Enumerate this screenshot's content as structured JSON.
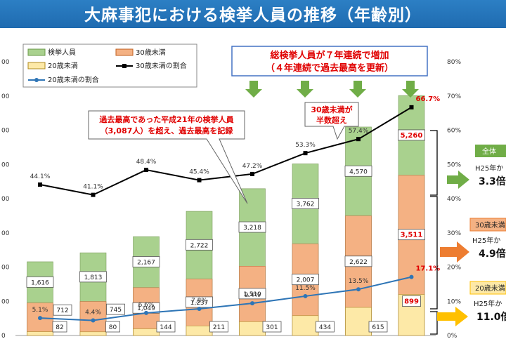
{
  "page": {
    "title": "大麻事犯における検挙人員の推移（年齢別）"
  },
  "chart_data": {
    "type": "bar",
    "stacked": true,
    "years_count": 8,
    "series": [
      {
        "name": "20歳未満",
        "values": [
          82,
          80,
          144,
          211,
          301,
          434,
          615,
          899
        ],
        "color": "#fde9a7"
      },
      {
        "name": "30歳未満",
        "values": [
          712,
          745,
          1049,
          1237,
          1519,
          2007,
          2622,
          3511
        ],
        "color": "#f4b183"
      },
      {
        "name": "検挙人員",
        "values": [
          1616,
          1813,
          2167,
          2722,
          3218,
          3762,
          4570,
          5260
        ],
        "color": "#a9d18e"
      }
    ],
    "lines": [
      {
        "name": "30歳未満の割合",
        "values": [
          44.1,
          41.1,
          48.4,
          45.4,
          47.2,
          53.3,
          57.4,
          66.7
        ],
        "labels": [
          "44.1%",
          "41.1%",
          "48.4%",
          "45.4%",
          "47.2%",
          "53.3%",
          "57.4%",
          "66.7%"
        ],
        "color": "#000000"
      },
      {
        "name": "20歳未満の割合",
        "values": [
          5.1,
          4.4,
          6.6,
          7.8,
          9.4,
          11.5,
          13.5,
          17.1
        ],
        "labels": [
          "5.1%",
          "4.4%",
          "6.6%",
          "7.8%",
          "9.4%",
          "11.5%",
          "13.5%",
          "17.1%"
        ],
        "color": "#2e75b6"
      }
    ],
    "y_left_ticks": [
      "0",
      "00",
      "00",
      "00",
      "00",
      "00",
      "00",
      "00",
      "00"
    ],
    "y_left_range": [
      0,
      6000
    ],
    "y_right_ticks": [
      "0%",
      "10%",
      "20%",
      "30%",
      "40%",
      "50%",
      "60%",
      "70%",
      "80%"
    ],
    "y_right_range": [
      0,
      80
    ],
    "legend": [
      "検挙人員",
      "30歳未満",
      "20歳未満",
      "30歳未満の割合",
      "20歳未満の割合"
    ]
  },
  "annotations": {
    "banner": [
      "総検挙人員が７年連続で増加",
      "（４年連続で過去最高を更新）"
    ],
    "record": [
      "過去最高であった平成21年の検挙人員",
      "（3,087人）を超え、過去最高を記録"
    ],
    "majority": [
      "30歳未満が",
      "半数超え"
    ]
  },
  "side_panels": [
    {
      "tag": "全体",
      "sub": "H25年か",
      "value": "3.3倍",
      "color": "#70ad47"
    },
    {
      "tag": "30歳未満",
      "sub": "H25年か",
      "value": "4.9倍",
      "color": "#ed7d31"
    },
    {
      "tag": "20歳未満",
      "sub": "H25年か",
      "value": "11.0倍",
      "color": "#ffc000"
    }
  ]
}
